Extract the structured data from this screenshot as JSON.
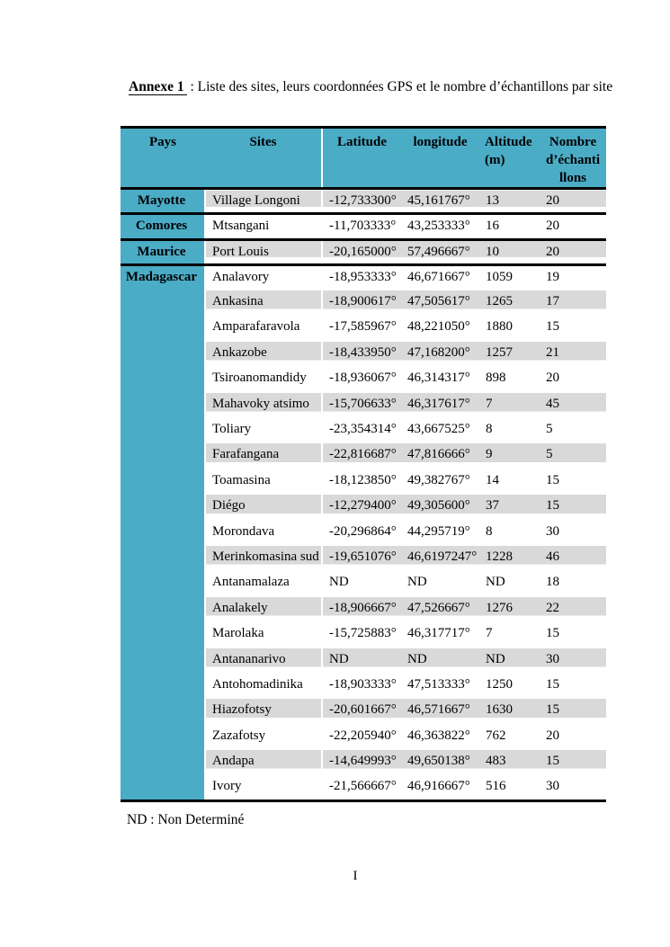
{
  "document": {
    "title_label": "Annexe 1",
    "title_rest": " : Liste des sites, leurs coordonnées GPS et le nombre d’échantillons par site",
    "footnote": "ND : Non Determiné",
    "page_number": "I"
  },
  "table": {
    "headers": [
      "Pays",
      "Sites",
      "Latitude",
      "longitude",
      "Altitude\n(m)",
      "Nombre\nd’échanti\nllons"
    ],
    "colors": {
      "header_bg": "#4BACC6",
      "alt_row_bg": "#D9D9D9",
      "group_border": "#000000"
    },
    "groups": [
      {
        "pays": "Mayotte",
        "rows": [
          [
            "Village Longoni",
            "-12,733300°",
            "45,161767°",
            "13",
            "20"
          ]
        ]
      },
      {
        "pays": "Comores",
        "rows": [
          [
            "Mtsangani",
            "-11,703333°",
            "43,253333°",
            "16",
            "20"
          ]
        ]
      },
      {
        "pays": "Maurice",
        "rows": [
          [
            "Port Louis",
            "-20,165000°",
            "57,496667°",
            "10",
            "20"
          ]
        ]
      },
      {
        "pays": "Madagascar",
        "rows": [
          [
            "Analavory",
            "-18,953333°",
            "46,671667°",
            "1059",
            "19"
          ],
          [
            "Ankasina",
            "-18,900617°",
            "47,505617°",
            "1265",
            "17"
          ],
          [
            "Amparafaravola",
            "-17,585967°",
            "48,221050°",
            "1880",
            "15"
          ],
          [
            "Ankazobe",
            "-18,433950°",
            "47,168200°",
            "1257",
            "21"
          ],
          [
            "Tsiroanomandidy",
            "-18,936067°",
            "46,314317°",
            "898",
            "20"
          ],
          [
            "Mahavoky atsimo",
            "-15,706633°",
            "46,317617°",
            "7",
            "45"
          ],
          [
            "Toliary",
            "-23,354314°",
            "43,667525°",
            "8",
            "5"
          ],
          [
            "Farafangana",
            "-22,816687°",
            "47,816666°",
            "9",
            "5"
          ],
          [
            "Toamasina",
            "-18,123850°",
            "49,382767°",
            "14",
            "15"
          ],
          [
            "Diégo",
            "-12,279400°",
            "49,305600°",
            "37",
            "15"
          ],
          [
            "Morondava",
            "-20,296864°",
            "44,295719°",
            "8",
            "30"
          ],
          [
            "Merinkomasina sud",
            "-19,651076°",
            "46,6197247°",
            "1228",
            "46"
          ],
          [
            "Antanamalaza",
            "ND",
            "ND",
            "ND",
            "18"
          ],
          [
            "Analakely",
            "-18,906667°",
            "47,526667°",
            "1276",
            "22"
          ],
          [
            "Marolaka",
            "-15,725883°",
            "46,317717°",
            "7",
            "15"
          ],
          [
            "Antananarivo",
            "ND",
            "ND",
            "ND",
            "30"
          ],
          [
            "Antohomadinika",
            "-18,903333°",
            "47,513333°",
            "1250",
            "15"
          ],
          [
            "Hiazofotsy",
            "-20,601667°",
            "46,571667°",
            "1630",
            "15"
          ],
          [
            "Zazafotsy",
            "-22,205940°",
            "46,363822°",
            "762",
            "20"
          ],
          [
            "Andapa",
            "-14,649993°",
            "49,650138°",
            "483",
            "15"
          ],
          [
            "Ivory",
            "-21,566667°",
            "46,916667°",
            "516",
            "30"
          ]
        ]
      }
    ]
  }
}
